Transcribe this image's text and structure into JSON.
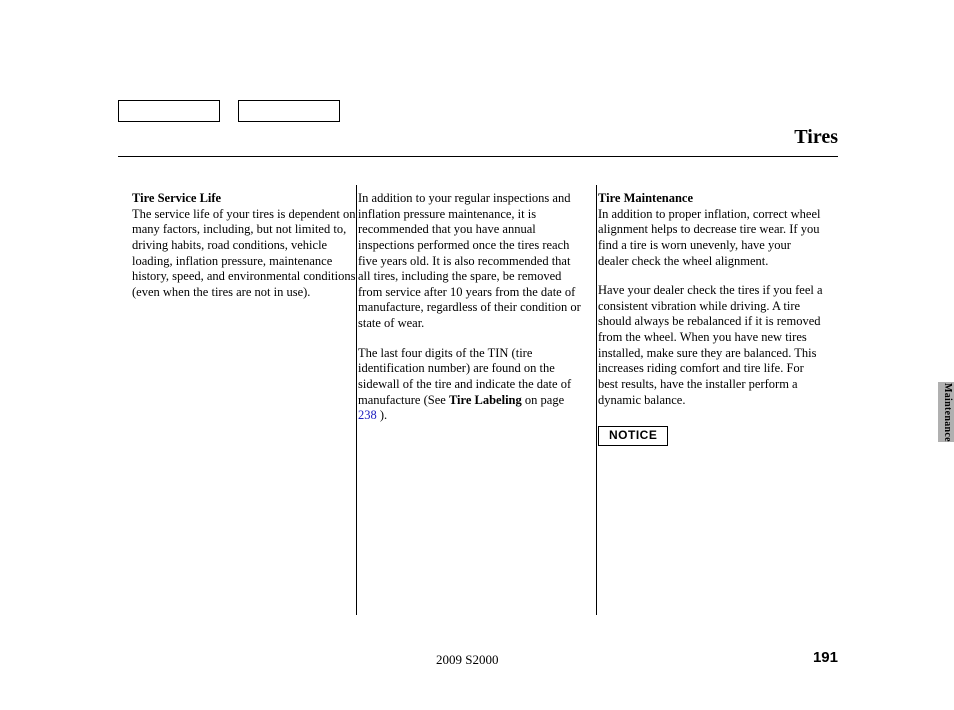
{
  "title": "Tires",
  "col1": {
    "heading": "Tire Service Life",
    "p1": "The service life of your tires is dependent on many factors, including, but not limited to, driving habits, road conditions, vehicle loading, inflation pressure, maintenance history, speed, and environmental conditions (even when the tires are not in use)."
  },
  "col2": {
    "p1": "In addition to your regular inspections and inflation pressure maintenance, it is recommended that you have annual inspections performed once the tires reach five years old. It is also recommended that all tires, including the spare, be removed from service after 10 years from the date of manufacture, regardless of their condition or state of wear.",
    "p2a": "The last four digits of the TIN (tire identification number) are found on the sidewall of the tire and indicate the date of manufacture (See ",
    "p2bold": "Tire Labeling",
    "p2b": " on page ",
    "p2link": "238",
    "p2c": " )."
  },
  "col3": {
    "heading": "Tire Maintenance",
    "p1": "In addition to proper inflation, correct wheel alignment helps to decrease tire wear. If you find a tire is worn unevenly, have your dealer check the wheel alignment.",
    "p2": "Have your dealer check the tires if you feel a consistent vibration while driving. A tire should always be rebalanced if it is removed from the wheel. When you have new tires installed, make sure they are balanced. This increases riding comfort and tire life. For best results, have the installer perform a dynamic balance.",
    "notice": "NOTICE"
  },
  "sideTab": "Maintenance",
  "footerModel": "2009  S2000",
  "pageNumber": "191"
}
